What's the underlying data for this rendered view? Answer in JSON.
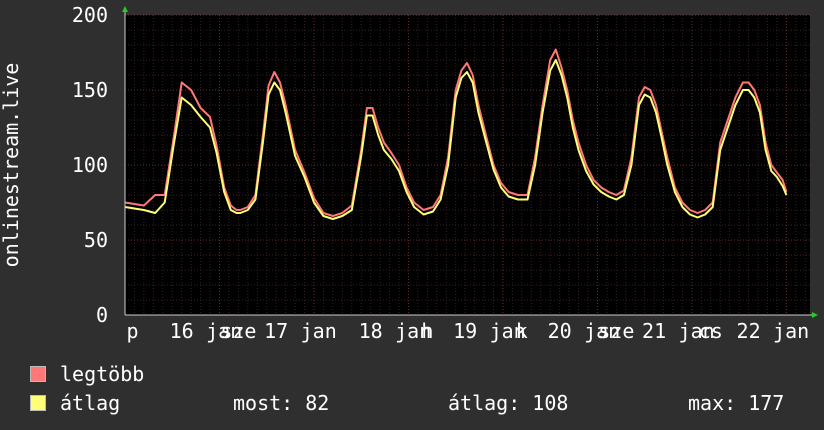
{
  "chart_data": {
    "type": "line",
    "ylabel": "onlinestream.live",
    "ylim": [
      0,
      200
    ],
    "yticks": [
      0,
      50,
      100,
      150,
      200
    ],
    "grid": true,
    "x_tick_labels": [
      "p",
      "16",
      "jan",
      "sze",
      "17",
      "jan",
      "18",
      "jan",
      "h",
      "19",
      "jan",
      "k",
      "20",
      "jan",
      "sze",
      "21",
      "jan",
      "cs",
      "22",
      "jan"
    ],
    "x_tick_positions": [
      0.08,
      0.6,
      1.05,
      1.2,
      1.6,
      2.05,
      2.6,
      3.05,
      3.2,
      3.6,
      4.05,
      4.2,
      4.6,
      5.05,
      5.2,
      5.6,
      6.05,
      6.2,
      6.6,
      7.05
    ],
    "x_range": [
      0,
      7.25
    ],
    "colors": {
      "max_series": "#ff7777",
      "avg_series": "#ffff77"
    },
    "series": [
      {
        "name": "legtöbb",
        "x": [
          0.0,
          0.1,
          0.2,
          0.32,
          0.42,
          0.52,
          0.6,
          0.7,
          0.8,
          0.9,
          0.97,
          1.05,
          1.12,
          1.18,
          1.22,
          1.3,
          1.38,
          1.46,
          1.52,
          1.58,
          1.64,
          1.7,
          1.8,
          1.9,
          2.0,
          2.1,
          2.2,
          2.3,
          2.4,
          2.5,
          2.56,
          2.62,
          2.68,
          2.74,
          2.82,
          2.9,
          2.98,
          3.06,
          3.16,
          3.26,
          3.34,
          3.42,
          3.5,
          3.56,
          3.62,
          3.68,
          3.74,
          3.82,
          3.9,
          3.98,
          4.06,
          4.16,
          4.26,
          4.34,
          4.42,
          4.5,
          4.56,
          4.62,
          4.68,
          4.74,
          4.8,
          4.88,
          4.96,
          5.04,
          5.12,
          5.2,
          5.28,
          5.36,
          5.44,
          5.5,
          5.56,
          5.62,
          5.68,
          5.74,
          5.82,
          5.9,
          5.98,
          6.06,
          6.14,
          6.22,
          6.3,
          6.38,
          6.46,
          6.54,
          6.6,
          6.66,
          6.72,
          6.78,
          6.84,
          6.9,
          6.96,
          7.0
        ],
        "values": [
          75,
          74,
          73,
          80,
          80,
          120,
          155,
          150,
          138,
          132,
          113,
          85,
          73,
          70,
          70,
          72,
          80,
          120,
          153,
          162,
          155,
          140,
          110,
          95,
          78,
          68,
          66,
          68,
          73,
          110,
          138,
          138,
          125,
          115,
          108,
          100,
          85,
          75,
          70,
          72,
          80,
          105,
          150,
          163,
          168,
          160,
          140,
          120,
          100,
          88,
          82,
          80,
          80,
          105,
          140,
          170,
          177,
          165,
          150,
          130,
          115,
          100,
          90,
          85,
          82,
          80,
          83,
          105,
          145,
          152,
          150,
          140,
          122,
          105,
          85,
          75,
          70,
          68,
          70,
          75,
          115,
          130,
          145,
          155,
          155,
          150,
          140,
          115,
          100,
          95,
          90,
          82
        ]
      },
      {
        "name": "átlag",
        "x": [
          0.0,
          0.1,
          0.2,
          0.32,
          0.42,
          0.52,
          0.6,
          0.7,
          0.8,
          0.9,
          0.97,
          1.05,
          1.12,
          1.18,
          1.22,
          1.3,
          1.38,
          1.46,
          1.52,
          1.58,
          1.64,
          1.7,
          1.8,
          1.9,
          2.0,
          2.1,
          2.2,
          2.3,
          2.4,
          2.5,
          2.56,
          2.62,
          2.68,
          2.74,
          2.82,
          2.9,
          2.98,
          3.06,
          3.16,
          3.26,
          3.34,
          3.42,
          3.5,
          3.56,
          3.62,
          3.68,
          3.74,
          3.82,
          3.9,
          3.98,
          4.06,
          4.16,
          4.26,
          4.34,
          4.42,
          4.5,
          4.56,
          4.62,
          4.68,
          4.74,
          4.8,
          4.88,
          4.96,
          5.04,
          5.12,
          5.2,
          5.28,
          5.36,
          5.44,
          5.5,
          5.56,
          5.62,
          5.68,
          5.74,
          5.82,
          5.9,
          5.98,
          6.06,
          6.14,
          6.22,
          6.3,
          6.38,
          6.46,
          6.54,
          6.6,
          6.66,
          6.72,
          6.78,
          6.84,
          6.9,
          6.96,
          7.0
        ],
        "values": [
          72,
          71,
          70,
          68,
          75,
          115,
          145,
          140,
          132,
          125,
          108,
          82,
          70,
          68,
          68,
          70,
          77,
          115,
          147,
          155,
          150,
          135,
          106,
          92,
          75,
          66,
          64,
          66,
          70,
          106,
          133,
          133,
          120,
          110,
          104,
          96,
          82,
          72,
          67,
          69,
          77,
          100,
          145,
          158,
          162,
          155,
          135,
          116,
          97,
          85,
          79,
          77,
          77,
          100,
          135,
          163,
          170,
          160,
          145,
          125,
          110,
          96,
          87,
          82,
          79,
          77,
          80,
          100,
          140,
          147,
          145,
          135,
          118,
          100,
          82,
          72,
          67,
          65,
          67,
          72,
          110,
          125,
          140,
          150,
          150,
          145,
          135,
          110,
          96,
          92,
          86,
          80
        ]
      }
    ]
  },
  "legend": [
    {
      "label": "legtöbb",
      "color": "#ff7777"
    },
    {
      "label": "átlag",
      "color": "#ffff77"
    }
  ],
  "stats": {
    "now": "most: 82",
    "average": "átlag: 108",
    "max": "max: 177"
  }
}
